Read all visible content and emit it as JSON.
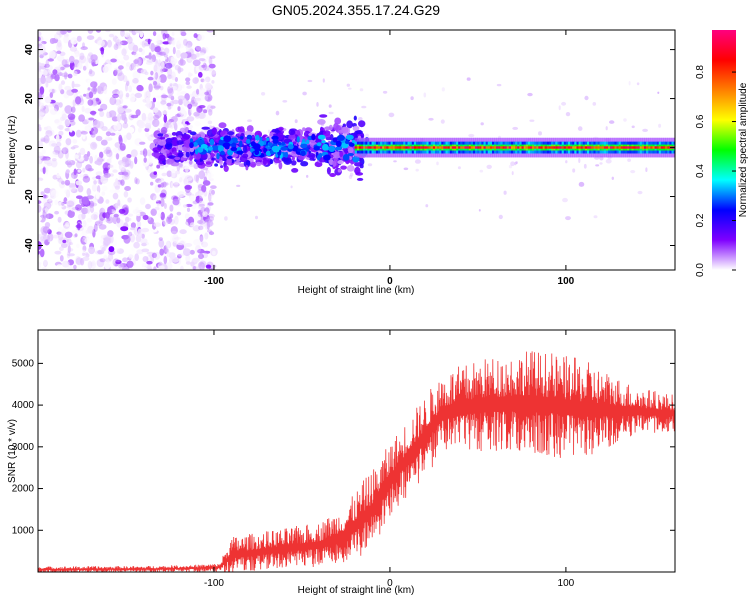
{
  "title": "GN05.2024.355.17.24.G29",
  "chart_data": [
    {
      "type": "heatmap",
      "xlabel": "Height of straight line (km)",
      "ylabel": "Frequency (Hz)",
      "xlim": [
        -200,
        162
      ],
      "ylim": [
        -50,
        48
      ],
      "xticks": [
        -100,
        0,
        100
      ],
      "xtick_labels": [
        "-100",
        "0",
        "100"
      ],
      "yticks": [
        -40,
        -20,
        0,
        20,
        40
      ],
      "ytick_labels": [
        "-40",
        "-20",
        "0",
        "20",
        "40"
      ],
      "colorbar": {
        "label": "Normalized spectral amplitude",
        "range": [
          0,
          0.97
        ],
        "ticks": [
          0.0,
          0.2,
          0.4,
          0.6,
          0.8
        ],
        "tick_labels": [
          "0.0",
          "0.2",
          "0.4",
          "0.6",
          "0.8"
        ],
        "colors": [
          "#ffffff",
          "#7f00ff",
          "#0000ff",
          "#00ffff",
          "#00ff00",
          "#ffff00",
          "#ff7f00",
          "#ff0000",
          "#ff007f"
        ]
      },
      "regions": [
        {
          "x": [
            -200,
            -103
          ],
          "freq": [
            -50,
            48
          ],
          "amplitude": [
            0.0,
            0.1
          ]
        },
        {
          "x": [
            -133,
            -15
          ],
          "freq": [
            -12,
            12
          ],
          "amplitude": [
            0.05,
            0.3
          ]
        },
        {
          "x": [
            -20,
            162
          ],
          "freq": [
            -3,
            3
          ],
          "amplitude": [
            0.3,
            0.9
          ]
        }
      ]
    },
    {
      "type": "line",
      "xlabel": "Height of straight line (km)",
      "ylabel": "SNR (10 * v/v)",
      "xlim": [
        -200,
        162
      ],
      "ylim": [
        0,
        5800
      ],
      "xticks": [
        -100,
        0,
        100
      ],
      "xtick_labels": [
        "-100",
        "0",
        "100"
      ],
      "yticks": [
        1000,
        2000,
        3000,
        4000,
        5000
      ],
      "ytick_labels": [
        "1000",
        "2000",
        "3000",
        "4000",
        "5000"
      ],
      "color": "#ee3333",
      "envelope": {
        "x": [
          -200,
          -140,
          -110,
          -97,
          -90,
          -60,
          -40,
          -25,
          -15,
          -10,
          0,
          15,
          30,
          50,
          80,
          110,
          140,
          162
        ],
        "mean": [
          60,
          70,
          90,
          110,
          400,
          550,
          650,
          900,
          1300,
          1500,
          2200,
          3000,
          3800,
          4000,
          4050,
          3900,
          3850,
          3800
        ],
        "spread": [
          150,
          150,
          170,
          200,
          900,
          1000,
          1100,
          1400,
          1800,
          1900,
          1800,
          1900,
          2000,
          2200,
          2600,
          2400,
          1200,
          900
        ]
      }
    }
  ]
}
